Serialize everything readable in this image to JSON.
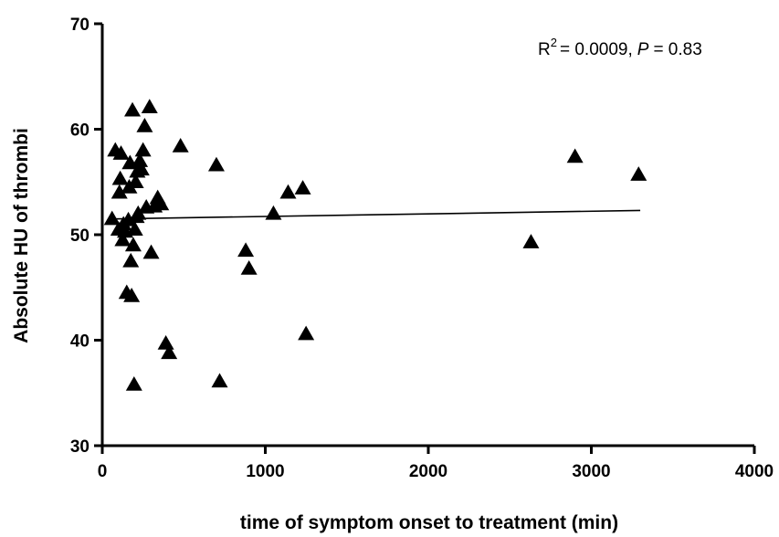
{
  "chart_data": {
    "type": "scatter",
    "xlabel": "time of symptom onset to treatment (min)",
    "ylabel": "Absolute HU of thrombi",
    "xlim": [
      0,
      4000
    ],
    "ylim": [
      30,
      70
    ],
    "xticks": [
      "0",
      "1000",
      "2000",
      "3000",
      "4000"
    ],
    "yticks": [
      "30",
      "40",
      "50",
      "60",
      "70"
    ],
    "xtick_values": [
      0,
      1000,
      2000,
      3000,
      4000
    ],
    "ytick_values": [
      30,
      40,
      50,
      60,
      70
    ],
    "grid": false,
    "marker": "triangle",
    "color": "#000000",
    "annotation": {
      "r_symbol": "R",
      "r_exp": "2",
      "r_value": "= 0.0009,",
      "p_symbol": "P",
      "p_value": "= 0.83"
    },
    "regression": {
      "x": [
        80,
        3300
      ],
      "y": [
        51.5,
        52.3
      ]
    },
    "points": [
      {
        "x": 60,
        "y": 51.5
      },
      {
        "x": 80,
        "y": 58.0
      },
      {
        "x": 100,
        "y": 50.5
      },
      {
        "x": 105,
        "y": 54.0
      },
      {
        "x": 110,
        "y": 55.3
      },
      {
        "x": 115,
        "y": 57.7
      },
      {
        "x": 125,
        "y": 49.5
      },
      {
        "x": 130,
        "y": 51.0
      },
      {
        "x": 140,
        "y": 50.3
      },
      {
        "x": 150,
        "y": 44.5
      },
      {
        "x": 160,
        "y": 51.4
      },
      {
        "x": 165,
        "y": 54.5
      },
      {
        "x": 170,
        "y": 56.8
      },
      {
        "x": 175,
        "y": 47.5
      },
      {
        "x": 180,
        "y": 44.2
      },
      {
        "x": 185,
        "y": 61.8
      },
      {
        "x": 190,
        "y": 49.0
      },
      {
        "x": 195,
        "y": 35.8
      },
      {
        "x": 200,
        "y": 50.5
      },
      {
        "x": 205,
        "y": 55.0
      },
      {
        "x": 210,
        "y": 51.7
      },
      {
        "x": 215,
        "y": 56.0
      },
      {
        "x": 220,
        "y": 52.0
      },
      {
        "x": 230,
        "y": 57.0
      },
      {
        "x": 240,
        "y": 56.2
      },
      {
        "x": 250,
        "y": 58.0
      },
      {
        "x": 260,
        "y": 60.3
      },
      {
        "x": 270,
        "y": 52.6
      },
      {
        "x": 290,
        "y": 62.1
      },
      {
        "x": 300,
        "y": 48.3
      },
      {
        "x": 320,
        "y": 52.7
      },
      {
        "x": 340,
        "y": 53.5
      },
      {
        "x": 360,
        "y": 52.9
      },
      {
        "x": 390,
        "y": 39.7
      },
      {
        "x": 410,
        "y": 38.8
      },
      {
        "x": 480,
        "y": 58.4
      },
      {
        "x": 700,
        "y": 56.6
      },
      {
        "x": 720,
        "y": 36.1
      },
      {
        "x": 880,
        "y": 48.5
      },
      {
        "x": 900,
        "y": 46.8
      },
      {
        "x": 1050,
        "y": 52.0
      },
      {
        "x": 1140,
        "y": 54.0
      },
      {
        "x": 1230,
        "y": 54.4
      },
      {
        "x": 1250,
        "y": 40.6
      },
      {
        "x": 2630,
        "y": 49.3
      },
      {
        "x": 2900,
        "y": 57.4
      },
      {
        "x": 3290,
        "y": 55.7
      }
    ]
  }
}
